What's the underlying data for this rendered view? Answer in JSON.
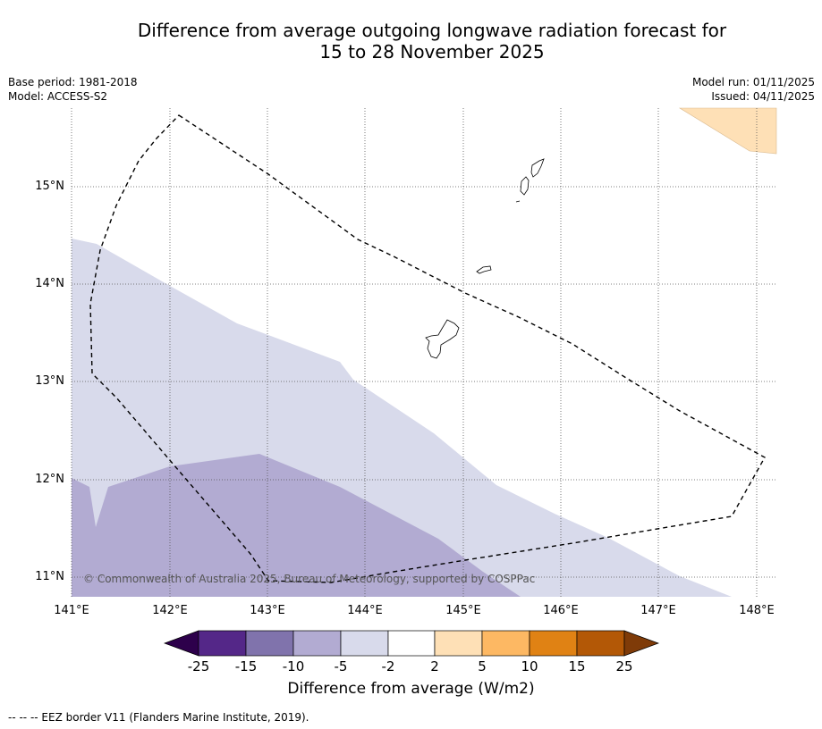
{
  "title_line1": "Difference from average outgoing longwave radiation forecast for",
  "title_line2": "15 to 28 November 2025",
  "base_period": "Base period: 1981-2018",
  "model": "Model: ACCESS-S2",
  "model_run": "Model run: 01/11/2025",
  "issued": "Issued: 04/11/2025",
  "lat_labels": [
    "15°N",
    "14°N",
    "13°N",
    "12°N",
    "11°N"
  ],
  "lon_labels": [
    "141°E",
    "142°E",
    "143°E",
    "144°E",
    "145°E",
    "146°E",
    "147°E",
    "148°E"
  ],
  "copyright": "© Commonwealth of Australia 2025, Bureau of Meteorology, supported by COSPPac",
  "colorbar": {
    "title": "Difference from average (W/m2)",
    "labels": [
      "-25",
      "-15",
      "-10",
      "-5",
      "-2",
      "2",
      "5",
      "10",
      "15",
      "25"
    ],
    "colors": [
      "#2d004b",
      "#542788",
      "#8073ac",
      "#b2abd2",
      "#d8daeb",
      "#ffffff",
      "#fee0b6",
      "#fdb863",
      "#e08214",
      "#b35806",
      "#7f3b08"
    ]
  },
  "footnote": "--  --  -- EEZ border V11 (Flanders Marine Institute, 2019).",
  "chart_data": {
    "type": "map",
    "region": {
      "lon_range": [
        141,
        148.2
      ],
      "lat_range": [
        10.8,
        15.8
      ]
    },
    "field": "Outgoing longwave radiation anomaly (W/m2)",
    "shaded_regions": [
      {
        "category": "-10 to -5",
        "color": "#b2abd2",
        "location": "southwest corner"
      },
      {
        "category": "-5 to -2",
        "color": "#d8daeb",
        "location": "western and southern band"
      },
      {
        "category": "2 to 5",
        "color": "#fee0b6",
        "location": "far northeast corner"
      }
    ],
    "overlays": [
      "EEZ border (dashed)",
      "Island coastlines"
    ]
  }
}
